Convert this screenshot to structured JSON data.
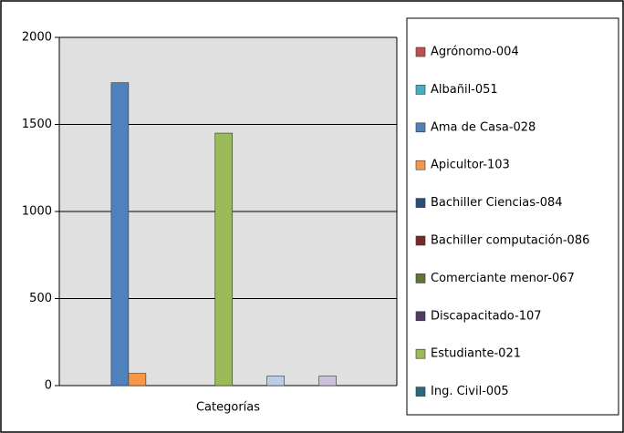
{
  "chart_data": {
    "type": "bar",
    "categories": [
      "Categorías"
    ],
    "series": [
      {
        "name": "Agrónomo-004",
        "color": "#c0504d",
        "values": [
          0
        ]
      },
      {
        "name": "Albañil-051",
        "color": "#4bacc6",
        "values": [
          0
        ]
      },
      {
        "name": "Ama de Casa-028",
        "color": "#4f81bd",
        "values": [
          1740
        ]
      },
      {
        "name": "Apicultor-103",
        "color": "#f79646",
        "values": [
          70
        ]
      },
      {
        "name": "Bachiller Ciencias-084",
        "color": "#2c4d75",
        "values": [
          0
        ]
      },
      {
        "name": "Bachiller computación-086",
        "color": "#772c2a",
        "values": [
          0
        ]
      },
      {
        "name": "Comerciante menor-067",
        "color": "#5f7530",
        "values": [
          0
        ]
      },
      {
        "name": "Discapacitado-107",
        "color": "#4d3b62",
        "values": [
          0
        ]
      },
      {
        "name": "Estudiante-021",
        "color": "#9bbb59",
        "values": [
          1450
        ]
      },
      {
        "name": "Ing. Civil-005",
        "color": "#276a7c",
        "values": [
          0
        ]
      },
      {
        "name": null,
        "color": "#729aca",
        "values": [
          0
        ]
      },
      {
        "name": null,
        "color": "#b9cde5",
        "values": [
          55
        ]
      },
      {
        "name": null,
        "color": "#dbeef4",
        "values": [
          0
        ]
      },
      {
        "name": null,
        "color": "#fcd5b5",
        "values": [
          0
        ]
      },
      {
        "name": null,
        "color": "#ccc1da",
        "values": [
          55
        ]
      }
    ],
    "ylim": [
      0,
      2000
    ],
    "yticks": [
      0,
      500,
      1000,
      1500,
      2000
    ],
    "grid": true,
    "legend": "right"
  }
}
